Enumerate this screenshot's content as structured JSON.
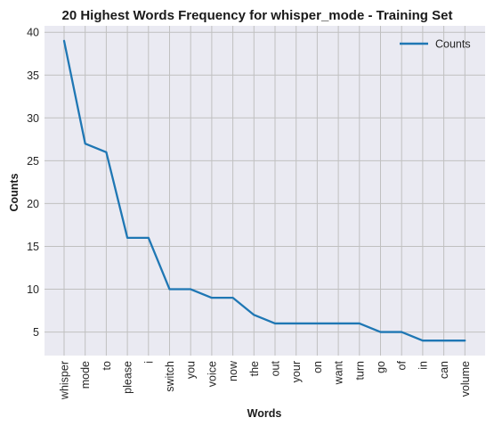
{
  "chart_data": {
    "type": "line",
    "title": "20 Highest Words Frequency for whisper_mode - Training Set",
    "xlabel": "Words",
    "ylabel": "Counts",
    "categories": [
      "whisper",
      "mode",
      "to",
      "please",
      "i",
      "switch",
      "you",
      "voice",
      "now",
      "the",
      "out",
      "your",
      "on",
      "want",
      "turn",
      "go",
      "of",
      "in",
      "can",
      "volume"
    ],
    "series": [
      {
        "name": "Counts",
        "values": [
          39,
          27,
          26,
          16,
          16,
          10,
          10,
          9,
          9,
          7,
          6,
          6,
          6,
          6,
          6,
          5,
          5,
          4,
          4,
          4
        ],
        "color": "#1f77b4"
      }
    ],
    "yticks": [
      5,
      10,
      15,
      20,
      25,
      30,
      35,
      40
    ],
    "ylim": [
      2.25,
      40.75
    ],
    "grid": true,
    "legend_position": "upper-right",
    "background_color": "#eaeaf2",
    "grid_color": "#c0c0c0"
  }
}
